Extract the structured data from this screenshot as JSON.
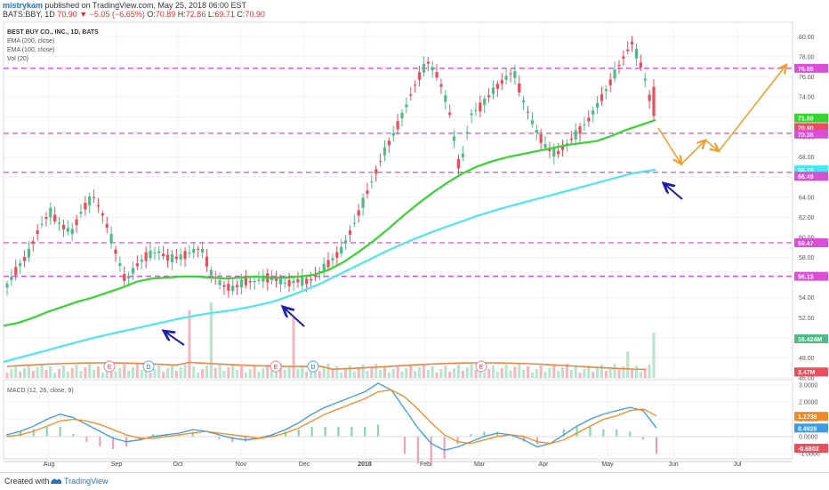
{
  "header": {
    "publisher": "mistrykam",
    "published_text": "published on TradingView.com, May 25, 2018 06:00 EST",
    "symbol": "BATS:BBY, 1D",
    "last": "70.90",
    "change": "▼ −5.05 (−6.65%)",
    "ohlc": {
      "O": "70.89",
      "H": "72.86",
      "L": "69.71",
      "C": "70.90"
    }
  },
  "legend": {
    "title": "BEST BUY CO., INC., 1D, BATS",
    "ema200": "EMA (200, close)",
    "ema100": "EMA (100, close)",
    "vol": "Vol (20)",
    "macd": "MACD (12, 26, close, 9)"
  },
  "footer": {
    "created_with": "Created with",
    "brand": "TradingView"
  },
  "colors": {
    "up": "#53b987",
    "down": "#eb4d5c",
    "ema100": "#36d432",
    "ema200": "#4ee5f0",
    "level": "#d94fd6",
    "arrow": "#f0a02e",
    "pointer": "#1f1fa8",
    "macd": "#3e9bde",
    "signal": "#f08a24",
    "volume_ma": "#e8864a"
  },
  "chart_data": [
    {
      "type": "candlestick",
      "title": "BEST BUY CO., INC., 1D, BATS",
      "y_axis_ticks": [
        "80.00",
        "78.00",
        "76.00",
        "74.00",
        "72.00",
        "70.00",
        "68.00",
        "66.00",
        "64.00",
        "62.00",
        "60.00",
        "58.00",
        "56.00",
        "54.00",
        "52.00",
        "50.00",
        "48.00",
        "46.00"
      ],
      "ylim": [
        46,
        81
      ],
      "x_axis_labels": [
        "Aug",
        "Sep",
        "Oct",
        "Nov",
        "Dec",
        "2018",
        "Feb",
        "Mar",
        "Apr",
        "May",
        "Jun",
        "Jul"
      ],
      "horizontal_levels": [
        "76.85",
        "70.38",
        "66.49",
        "59.47",
        "56.13"
      ],
      "price_badges": [
        {
          "label": "76.85",
          "value": 76.85,
          "color": "#d94fd6"
        },
        {
          "label": "71.69",
          "value": 71.9,
          "color": "#36d432"
        },
        {
          "label": "70.90",
          "value": 70.95,
          "color": "#eb4d5c"
        },
        {
          "label": "70.38",
          "value": 70.3,
          "color": "#d94fd6"
        },
        {
          "label": "66.75",
          "value": 66.75,
          "color": "#4ee5f0"
        },
        {
          "label": "66.49",
          "value": 66.1,
          "color": "#d94fd6"
        },
        {
          "label": "59.47",
          "value": 59.47,
          "color": "#d94fd6"
        },
        {
          "label": "56.13",
          "value": 56.13,
          "color": "#d94fd6"
        },
        {
          "label": "16.424M",
          "value": 49.9,
          "color": "#53b987"
        },
        {
          "label": "3.47M",
          "value": 46.6,
          "color": "#eb4d5c"
        }
      ],
      "price_path": [
        55.2,
        57.0,
        58.4,
        61.0,
        62.5,
        61.2,
        60.5,
        62.8,
        64.1,
        62.0,
        58.8,
        55.6,
        57.2,
        58.2,
        58.6,
        57.9,
        58.0,
        58.5,
        59.0,
        56.3,
        55.2,
        54.9,
        55.6,
        55.6,
        56.0,
        55.8,
        55.4,
        55.7,
        55.6,
        56.6,
        57.6,
        58.7,
        60.9,
        63.4,
        66.0,
        68.5,
        70.6,
        73.0,
        75.6,
        77.5,
        76.0,
        72.8,
        66.6,
        72.2,
        73.1,
        74.5,
        75.6,
        76.6,
        73.3,
        70.8,
        69.0,
        68.3,
        69.4,
        70.5,
        71.8,
        73.6,
        75.5,
        77.6,
        79.4,
        76.6,
        72.1
      ],
      "ema100": [
        51.2,
        51.5,
        52.0,
        52.6,
        53.1,
        53.6,
        54.0,
        54.5,
        55.0,
        55.6,
        55.9,
        56.0,
        56.1,
        56.1,
        56.0,
        55.9,
        56.0,
        56.1,
        56.0,
        56.0,
        56.1,
        56.3,
        56.8,
        57.6,
        58.6,
        59.7,
        60.9,
        62.2,
        63.4,
        64.5,
        65.5,
        66.4,
        67.1,
        67.6,
        68.0,
        68.3,
        68.6,
        68.9,
        69.2,
        69.4,
        69.6,
        70.1,
        70.7,
        71.2,
        71.7
      ],
      "ema200": [
        47.6,
        48.2,
        48.8,
        49.4,
        50.0,
        50.5,
        51.0,
        51.5,
        52.0,
        52.4,
        52.7,
        53.1,
        53.6,
        54.4,
        55.3,
        56.4,
        57.5,
        58.6,
        59.6,
        60.5,
        61.3,
        62.1,
        62.8,
        63.4,
        64.0,
        64.6,
        65.2,
        65.8,
        66.4,
        66.75
      ],
      "projection_arrows": [
        "70.9 to 67.3",
        "67.3 to 69.7",
        "69.7 to 68.6",
        "68.6 to 77.2"
      ],
      "volume_labels": [
        "16.424M",
        "3.47M"
      ],
      "earnings_markers": [
        "E",
        "D",
        "E",
        "D",
        "E"
      ]
    },
    {
      "type": "line",
      "title": "MACD (12, 26, close, 9)",
      "y_axis_ticks": [
        "3.0000",
        "2.0000",
        "1.0000",
        "0.0000",
        "-1.0000"
      ],
      "ylim": [
        -1.3,
        3.3
      ],
      "series": [
        {
          "name": "MACD",
          "values": [
            0.1,
            0.3,
            0.6,
            1.0,
            1.3,
            1.1,
            0.7,
            0.3,
            -0.1,
            -0.3,
            -0.2,
            0.0,
            0.1,
            0.2,
            0.4,
            0.3,
            0.1,
            -0.1,
            -0.2,
            -0.1,
            0.1,
            0.4,
            0.8,
            1.3,
            1.7,
            2.0,
            2.3,
            2.6,
            3.1,
            2.7,
            1.6,
            0.5,
            -0.4,
            -0.8,
            -0.6,
            -0.3,
            0.0,
            0.2,
            0.1,
            -0.2,
            -0.6,
            -0.4,
            0.1,
            0.6,
            1.0,
            1.3,
            1.5,
            1.7,
            1.5,
            0.5
          ]
        },
        {
          "name": "Signal",
          "values": [
            0.0,
            0.1,
            0.3,
            0.6,
            0.9,
            1.0,
            0.9,
            0.7,
            0.4,
            0.1,
            -0.1,
            -0.1,
            0.0,
            0.1,
            0.2,
            0.3,
            0.2,
            0.1,
            0.0,
            -0.1,
            0.0,
            0.2,
            0.5,
            0.9,
            1.3,
            1.6,
            1.9,
            2.2,
            2.6,
            2.7,
            2.3,
            1.6,
            0.8,
            0.1,
            -0.3,
            -0.4,
            -0.2,
            0.0,
            0.1,
            0.0,
            -0.3,
            -0.4,
            -0.2,
            0.2,
            0.6,
            1.0,
            1.2,
            1.5,
            1.6,
            1.2
          ]
        }
      ],
      "value_badges": [
        {
          "label": "1.1738",
          "value": 1.1738,
          "color": "#f08a24"
        },
        {
          "label": "0.4926",
          "value": 0.4926,
          "color": "#3e9bde"
        },
        {
          "label": "-0.6802",
          "value": -0.6802,
          "color": "#eb4d5c"
        }
      ]
    }
  ]
}
